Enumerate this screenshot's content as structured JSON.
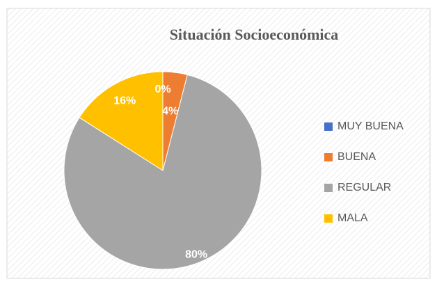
{
  "chart_data": {
    "type": "pie",
    "title": "Situación Socioeconómica",
    "categories": [
      "MUY BUENA",
      "BUENA",
      "REGULAR",
      "MALA"
    ],
    "values": [
      0,
      4,
      80,
      16
    ],
    "value_labels": [
      "0%",
      "4%",
      "80%",
      "16%"
    ],
    "colors": [
      "#4472c4",
      "#ed7d31",
      "#a5a5a5",
      "#ffc000"
    ],
    "legend": "right"
  }
}
